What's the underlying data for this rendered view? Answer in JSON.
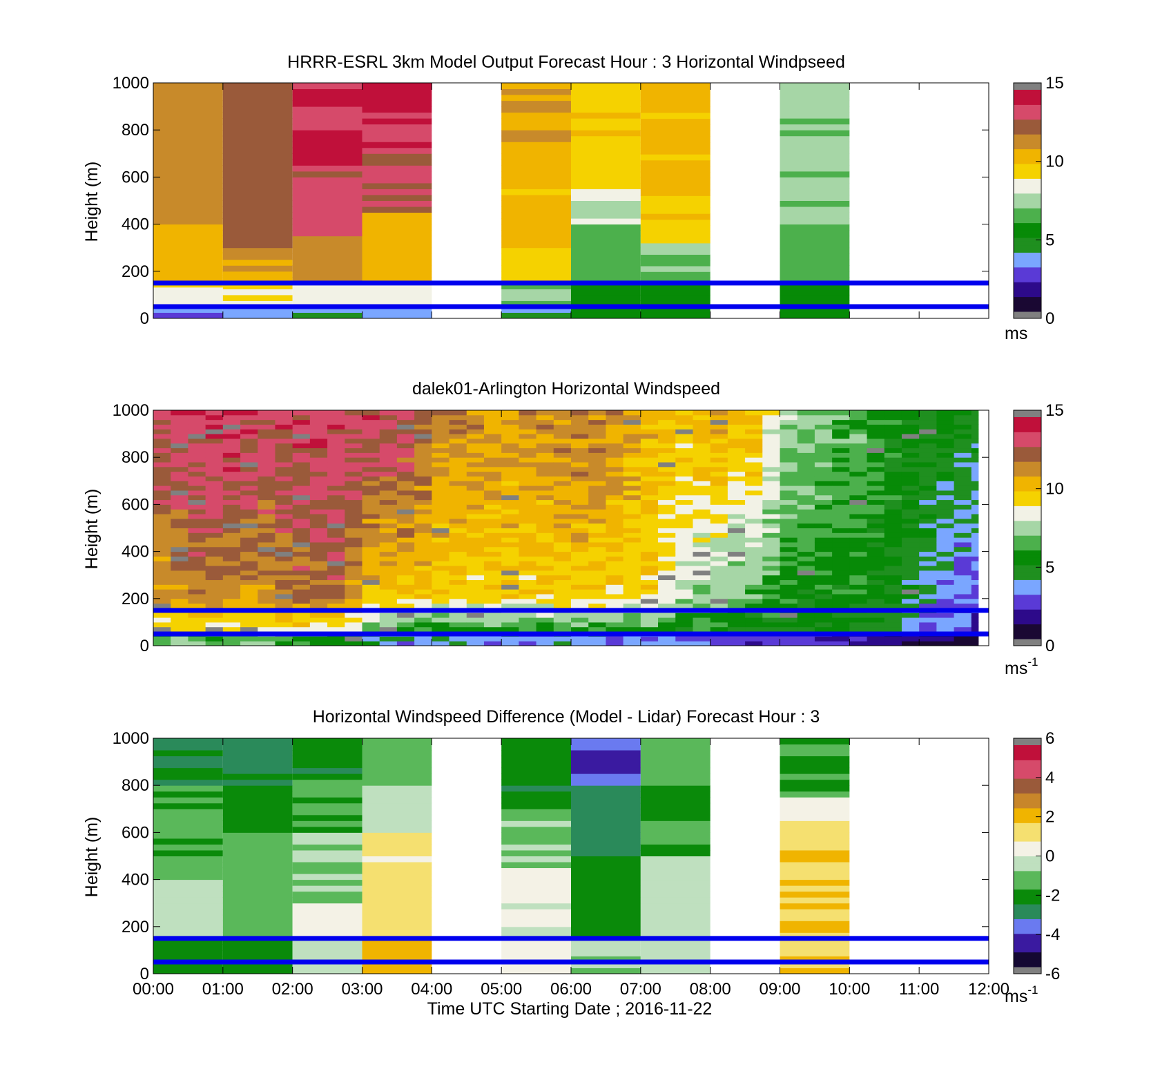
{
  "colorbar_colors": {
    "wind": [
      "#1a0833",
      "#2d0a8a",
      "#5a3ad6",
      "#7aa6ff",
      "#1f8f1f",
      "#078a07",
      "#4cb04c",
      "#a6d6a6",
      "#f2f2e6",
      "#f5d200",
      "#f0b400",
      "#c88a2a",
      "#9a5a3a",
      "#d64a6a",
      "#c0103a"
    ],
    "diff": [
      "#140833",
      "#3a1aa0",
      "#6a7af0",
      "#2a8a5a",
      "#0a8a0a",
      "#5ab85a",
      "#bfe0bf",
      "#f4f2e6",
      "#f5e070",
      "#f0b400",
      "#c8862a",
      "#9a5a3a",
      "#d64a6a",
      "#c0103a"
    ],
    "nan_gray": "#808080"
  },
  "reference_lines_color": "#0000ee",
  "chart_data": [
    {
      "type": "heatmap",
      "title": "HRRR-ESRL 3km Model Output   Forecast Hour : 3 Horizontal Windpseed",
      "ylabel": "Height (m)",
      "ylim": [
        0,
        1000
      ],
      "yticks": [
        "0",
        "200",
        "400",
        "600",
        "800",
        "1000"
      ],
      "xlim_hours": [
        0,
        12
      ],
      "colorbar": {
        "min": 0,
        "max": 15,
        "ticks": [
          "0",
          "5",
          "10",
          "15"
        ],
        "unit": "ms",
        "unit_sup": ""
      },
      "reference_lines_m": [
        50,
        150
      ],
      "column_hours": [
        0,
        1,
        2,
        3,
        5,
        6,
        7,
        9
      ],
      "column_width_hours": 1,
      "profiles": [
        [
          [
            0,
            50,
            3
          ],
          [
            50,
            160,
            9
          ],
          [
            160,
            400,
            10.5
          ],
          [
            400,
            1000,
            11.5
          ]
        ],
        [
          [
            0,
            50,
            4
          ],
          [
            50,
            150,
            9
          ],
          [
            150,
            300,
            11
          ],
          [
            300,
            1000,
            12.5
          ]
        ],
        [
          [
            0,
            50,
            4
          ],
          [
            50,
            150,
            8.5
          ],
          [
            150,
            350,
            11.5
          ],
          [
            350,
            650,
            13.3
          ],
          [
            650,
            1000,
            14.2
          ]
        ],
        [
          [
            0,
            50,
            4
          ],
          [
            50,
            150,
            8.5
          ],
          [
            150,
            450,
            10.5
          ],
          [
            450,
            700,
            13.0
          ],
          [
            700,
            1000,
            14.2
          ]
        ],
        [
          [
            0,
            50,
            4
          ],
          [
            50,
            150,
            7
          ],
          [
            150,
            300,
            9.5
          ],
          [
            300,
            750,
            10.1
          ],
          [
            750,
            1000,
            11
          ]
        ],
        [
          [
            0,
            150,
            5.5
          ],
          [
            150,
            400,
            6.5
          ],
          [
            400,
            550,
            8
          ],
          [
            550,
            700,
            9.5
          ],
          [
            700,
            1000,
            9.9
          ]
        ],
        [
          [
            0,
            150,
            5.5
          ],
          [
            150,
            320,
            7
          ],
          [
            320,
            420,
            9.5
          ],
          [
            420,
            1000,
            10.2
          ]
        ],
        [
          [
            0,
            150,
            5.5
          ],
          [
            150,
            400,
            6.5
          ],
          [
            400,
            1000,
            7.2
          ]
        ]
      ]
    },
    {
      "type": "heatmap",
      "title": "dalek01-Arlington  Horizontal Windspeed",
      "ylabel": "Height (m)",
      "ylim": [
        0,
        1000
      ],
      "yticks": [
        "0",
        "200",
        "400",
        "600",
        "800",
        "1000"
      ],
      "xlim_hours": [
        0,
        12
      ],
      "colorbar": {
        "min": 0,
        "max": 15,
        "ticks": [
          "0",
          "5",
          "10",
          "15"
        ],
        "unit": "ms",
        "unit_sup": "-1"
      },
      "reference_lines_m": [
        50,
        150
      ],
      "data_end_hour": 11.85,
      "time_series": [
        {
          "t": 0.0,
          "low": 9,
          "mid": 11,
          "high": 13.5
        },
        {
          "t": 0.5,
          "low": 9,
          "mid": 12,
          "high": 13.8
        },
        {
          "t": 1.0,
          "low": 9,
          "mid": 11.5,
          "high": 14
        },
        {
          "t": 1.5,
          "low": 9,
          "mid": 11,
          "high": 13.5
        },
        {
          "t": 2.0,
          "low": 9,
          "mid": 12,
          "high": 13.5
        },
        {
          "t": 2.5,
          "low": 8.5,
          "mid": 12.5,
          "high": 13.5
        },
        {
          "t": 3.0,
          "low": 7,
          "mid": 10,
          "high": 13.5
        },
        {
          "t": 3.5,
          "low": 6,
          "mid": 10,
          "high": 13.5
        },
        {
          "t": 4.0,
          "low": 6,
          "mid": 9.5,
          "high": 11.5
        },
        {
          "t": 4.5,
          "low": 6,
          "mid": 9.5,
          "high": 11.5
        },
        {
          "t": 5.0,
          "low": 6,
          "mid": 9.5,
          "high": 11.2
        },
        {
          "t": 5.5,
          "low": 6,
          "mid": 9.5,
          "high": 11.5
        },
        {
          "t": 6.0,
          "low": 6,
          "mid": 9.5,
          "high": 12
        },
        {
          "t": 6.5,
          "low": 6,
          "mid": 9.5,
          "high": 11.5
        },
        {
          "t": 7.0,
          "low": 6,
          "mid": 9.5,
          "high": 10.5
        },
        {
          "t": 7.5,
          "low": 5.5,
          "mid": 7.5,
          "high": 10
        },
        {
          "t": 8.0,
          "low": 5.5,
          "mid": 7,
          "high": 11
        },
        {
          "t": 8.5,
          "low": 5,
          "mid": 6.5,
          "high": 10.5
        },
        {
          "t": 9.0,
          "low": 5,
          "mid": 5.5,
          "high": 7.5
        },
        {
          "t": 9.5,
          "low": 5,
          "mid": 5.5,
          "high": 7
        },
        {
          "t": 10.0,
          "low": 4.5,
          "mid": 5.5,
          "high": 6.5
        },
        {
          "t": 10.5,
          "low": 4,
          "mid": 5,
          "high": 5.5
        },
        {
          "t": 11.0,
          "low": 3.2,
          "mid": 4,
          "high": 5.2
        },
        {
          "t": 11.5,
          "low": 2.5,
          "mid": 3,
          "high": 5
        }
      ]
    },
    {
      "type": "heatmap",
      "title": "Horizontal Windspeed Difference (Model - Lidar) Forecast Hour : 3",
      "ylabel": "Height (m)",
      "xlabel": "Time UTC  Starting Date ; 2016-11-22",
      "ylim": [
        0,
        1000
      ],
      "yticks": [
        "0",
        "200",
        "400",
        "600",
        "800",
        "1000"
      ],
      "xlim_hours": [
        0,
        12
      ],
      "xticks": [
        "00:00",
        "01:00",
        "02:00",
        "03:00",
        "04:00",
        "05:00",
        "06:00",
        "07:00",
        "08:00",
        "09:00",
        "10:00",
        "11:00",
        "12:00"
      ],
      "colorbar": {
        "min": -6,
        "max": 6,
        "ticks": [
          "-6",
          "-4",
          "-2",
          "0",
          "2",
          "4",
          "6"
        ],
        "unit": "ms",
        "unit_sup": "-1"
      },
      "reference_lines_m": [
        50,
        150
      ],
      "column_hours": [
        0,
        1,
        2,
        3,
        5,
        6,
        7,
        9
      ],
      "column_width_hours": 1,
      "profiles": [
        [
          [
            0,
            150,
            -2.2
          ],
          [
            150,
            400,
            -0.6
          ],
          [
            400,
            800,
            -1.6
          ],
          [
            800,
            950,
            -2.6
          ],
          [
            950,
            1000,
            -3.2
          ]
        ],
        [
          [
            0,
            150,
            -2.3
          ],
          [
            150,
            600,
            -1.3
          ],
          [
            600,
            850,
            -2.4
          ],
          [
            850,
            1000,
            -3.0
          ]
        ],
        [
          [
            0,
            150,
            -0.4
          ],
          [
            150,
            300,
            0.6
          ],
          [
            300,
            600,
            -0.8
          ],
          [
            600,
            850,
            -1.6
          ],
          [
            850,
            1000,
            -2.6
          ]
        ],
        [
          [
            0,
            150,
            2.2
          ],
          [
            150,
            250,
            1.5
          ],
          [
            250,
            600,
            1.0
          ],
          [
            600,
            800,
            -0.4
          ],
          [
            800,
            1000,
            -1.2
          ]
        ],
        [
          [
            0,
            150,
            0.4
          ],
          [
            150,
            450,
            0.1
          ],
          [
            450,
            700,
            -1.0
          ],
          [
            700,
            1000,
            -2.4
          ]
        ],
        [
          [
            0,
            150,
            -0.8
          ],
          [
            150,
            500,
            -2.2
          ],
          [
            500,
            800,
            -3.0
          ],
          [
            800,
            850,
            -3.6
          ],
          [
            850,
            950,
            -4.4
          ],
          [
            950,
            1000,
            -4.0
          ]
        ],
        [
          [
            0,
            150,
            -0.4
          ],
          [
            150,
            500,
            -0.6
          ],
          [
            500,
            800,
            -1.8
          ],
          [
            800,
            1000,
            -1.2
          ]
        ],
        [
          [
            0,
            650,
            1.6
          ],
          [
            650,
            750,
            0.3
          ],
          [
            750,
            1000,
            -1.7
          ]
        ]
      ]
    }
  ]
}
